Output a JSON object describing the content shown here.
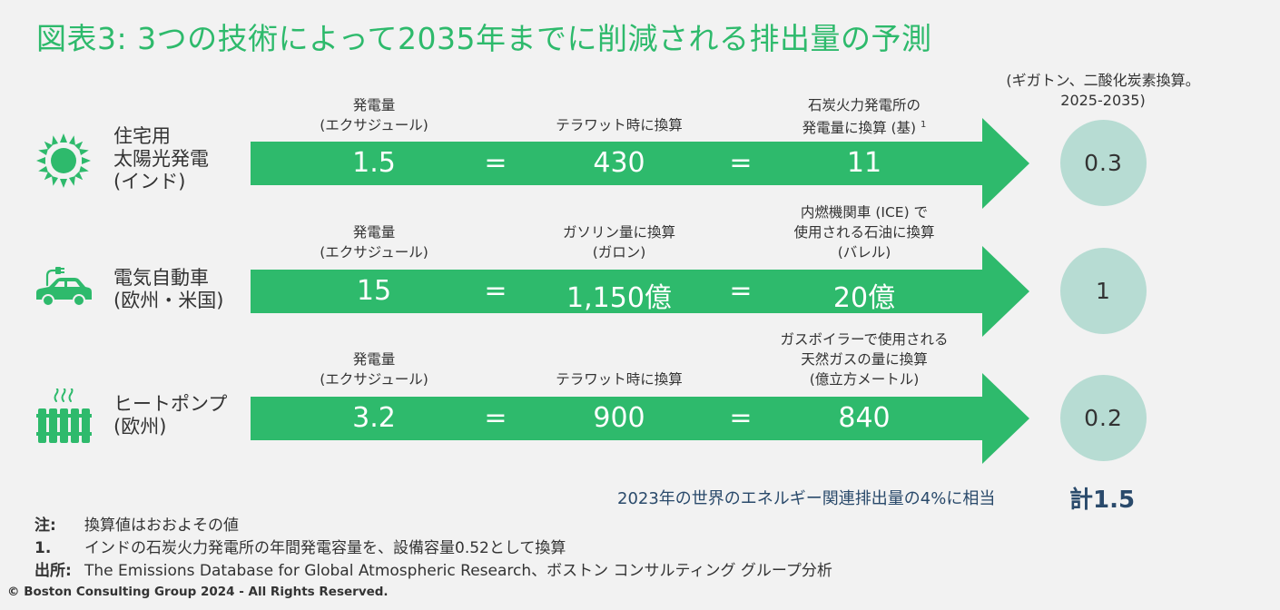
{
  "title": "図表3: 3つの技術によって2035年までに削減される排出量の予測",
  "unit_note_line1": "(ギガトン、二酸化炭素換算。",
  "unit_note_line2": "2025-2035)",
  "colors": {
    "accent": "#2eba6c",
    "circle": "#b7dcd3",
    "navy": "#2a4a6b"
  },
  "rows": [
    {
      "icon": "sun-icon",
      "label_lines": [
        "住宅用",
        "太陽光発電",
        "(インド)"
      ],
      "h1_lines": [
        "発電量",
        "(エクサジュール)"
      ],
      "h2_lines": [
        "テラワット時に換算"
      ],
      "h3_lines": [
        "石炭火力発電所の",
        "発電量に換算 (基)"
      ],
      "h3_sup": "1",
      "v1": "1.5",
      "eq1": "=",
      "v2": "430",
      "eq2": "=",
      "v3": "11",
      "result": "0.3"
    },
    {
      "icon": "electric-car-icon",
      "label_lines": [
        "電気自動車",
        "(欧州・米国)"
      ],
      "h1_lines": [
        "発電量",
        "(エクサジュール)"
      ],
      "h2_lines": [
        "ガソリン量に換算",
        "(ガロン)"
      ],
      "h3_lines": [
        "内燃機関車 (ICE) で",
        "使用される石油に換算",
        "(バレル)"
      ],
      "v1": "15",
      "eq1": "=",
      "v2": "1,150億",
      "eq2": "=",
      "v3": "20億",
      "result": "1"
    },
    {
      "icon": "heat-pump-radiator-icon",
      "label_lines": [
        "ヒートポンプ",
        "(欧州)"
      ],
      "h1_lines": [
        "発電量",
        "(エクサジュール)"
      ],
      "h2_lines": [
        "テラワット時に換算"
      ],
      "h3_lines": [
        "ガスボイラーで使用される",
        "天然ガスの量に換算",
        "(億立方メートル)"
      ],
      "v1": "3.2",
      "eq1": "=",
      "v2": "900",
      "eq2": "=",
      "v3": "840",
      "result": "0.2"
    }
  ],
  "equivalence": "2023年の世界のエネルギー関連排出量の4%に相当",
  "total": "計1.5",
  "notes": [
    {
      "key": "注:",
      "text": "換算値はおおよその値"
    },
    {
      "key": "1.",
      "text": "インドの石炭火力発電所の年間発電容量を、設備容量0.52として換算"
    },
    {
      "key": "出所:",
      "text": "The Emissions Database for Global Atmospheric Research、ボストン コンサルティング グループ分析"
    }
  ],
  "copyright": "© Boston Consulting Group 2024 - All Rights Reserved."
}
